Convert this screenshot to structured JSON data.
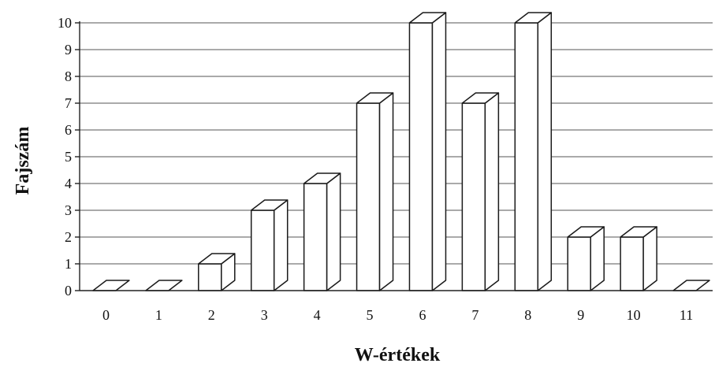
{
  "chart_data": {
    "type": "bar",
    "style": "3d-column",
    "title": "",
    "xlabel": "W-értékek",
    "ylabel": "Fajszám",
    "categories": [
      "0",
      "1",
      "2",
      "3",
      "4",
      "5",
      "6",
      "7",
      "8",
      "9",
      "10",
      "11"
    ],
    "values": [
      0,
      0,
      1,
      3,
      4,
      7,
      10,
      7,
      10,
      2,
      2,
      0
    ],
    "ylim": [
      0,
      10
    ],
    "yticks": [
      "0",
      "1",
      "2",
      "3",
      "4",
      "5",
      "6",
      "7",
      "8",
      "9",
      "10"
    ],
    "grid": true,
    "legend": "none",
    "colors": {
      "bar_fill": "#ffffff",
      "bar_stroke": "#1a1a1a",
      "grid": "#555555"
    }
  }
}
